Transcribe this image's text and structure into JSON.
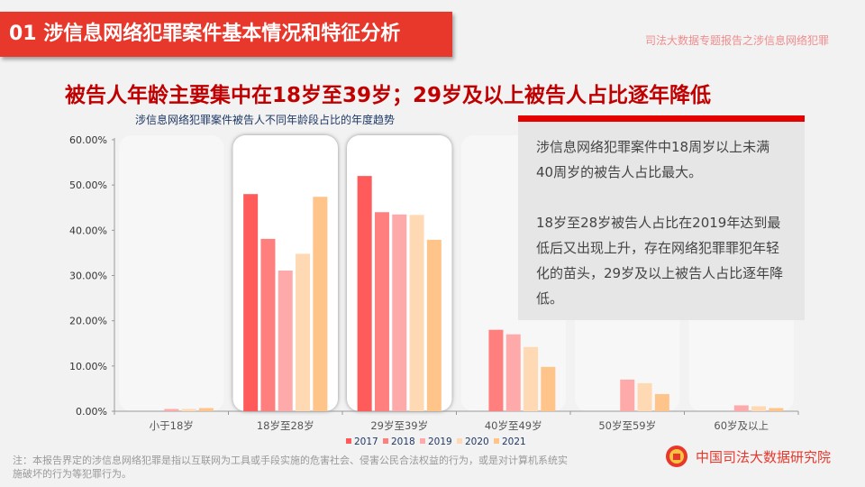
{
  "header": {
    "section_title": "01  涉信息网络犯罪案件基本情况和特征分析",
    "brand_text": "司法大数据专题报告之涉信息网络犯罪"
  },
  "headline": "被告人年龄主要集中在18岁至39岁；29岁及以上被告人占比逐年降低",
  "panel": {
    "paragraph1": "涉信息网络犯罪案件中18周岁以上未满40周岁的被告人占比最大。",
    "paragraph2": "18岁至28岁被告人占比在2019年达到最低后又出现上升，存在网络犯罪罪犯年轻化的苗头，29岁及以上被告人占比逐年降低。"
  },
  "note": "注：本报告界定的涉信息网络犯罪是指以互联网为工具或手段实施的危害社会、侵害公民合法权益的行为，或是对计算机系统实施破坏的行为等犯罪行为。",
  "logo": {
    "icon": "court-emblem-icon",
    "text": "中国司法大数据研究院"
  },
  "chart_data": {
    "type": "bar",
    "title": "涉信息网络犯罪案件被告人不同年龄段占比的年度趋势",
    "categories": [
      "小于18岁",
      "18岁至28岁",
      "29岁至39岁",
      "40岁至49岁",
      "50岁至59岁",
      "60岁及以上"
    ],
    "ylim": [
      0,
      60
    ],
    "yticks": [
      "0.00%",
      "10.00%",
      "20.00%",
      "30.00%",
      "40.00%",
      "50.00%",
      "60.00%"
    ],
    "highlighted_categories": [
      "18岁至28岁",
      "29岁至39岁"
    ],
    "legend_position": "bottom",
    "series": [
      {
        "name": "2017",
        "color": "#ff5b5b",
        "values": [
          0,
          48.0,
          52.0,
          0,
          0,
          0
        ]
      },
      {
        "name": "2018",
        "color": "#ff7f7f",
        "values": [
          0,
          38.1,
          44.0,
          18.0,
          0,
          0
        ]
      },
      {
        "name": "2019",
        "color": "#ffaaaa",
        "values": [
          0.5,
          31.1,
          43.5,
          17.0,
          7.0,
          1.3
        ]
      },
      {
        "name": "2020",
        "color": "#ffd9b3",
        "values": [
          0.5,
          34.8,
          43.4,
          14.2,
          6.2,
          1.1
        ]
      },
      {
        "name": "2021",
        "color": "#ffc48a",
        "values": [
          0.7,
          47.4,
          37.9,
          9.8,
          3.8,
          0.7
        ]
      }
    ]
  }
}
